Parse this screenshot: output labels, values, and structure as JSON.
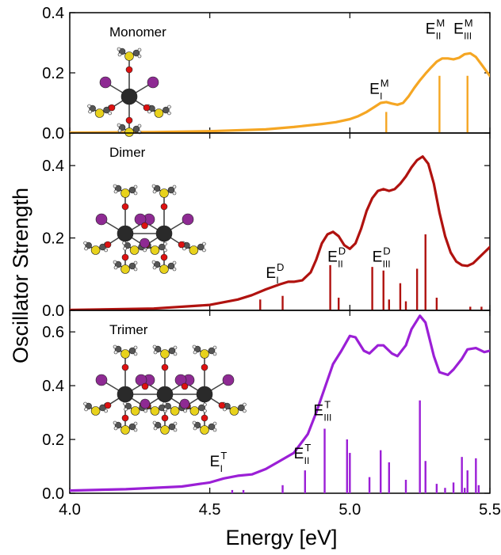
{
  "figure": {
    "ylabel": "Oscillator Strength",
    "xlabel": "Energy [eV]",
    "xlim": [
      4.0,
      5.5
    ],
    "xticks": [
      "4.0",
      "4.5",
      "5.0",
      "5.5"
    ],
    "xtick_values": [
      4.0,
      4.5,
      5.0,
      5.5
    ]
  },
  "colors": {
    "monomer": "#f5a623",
    "dimer": "#b0120f",
    "trimer": "#9b1fd6"
  },
  "chart_data": [
    {
      "type": "line",
      "name": "monomer",
      "title": "Monomer",
      "ylim": [
        0,
        0.4
      ],
      "yticks": [
        "0.0",
        "0.2",
        "0.4"
      ],
      "ytick_values": [
        0.0,
        0.2,
        0.4
      ],
      "molecule_icon": "monomer-molecule-icon",
      "curve_x": [
        4.0,
        4.3,
        4.5,
        4.7,
        4.8,
        4.9,
        4.95,
        5.0,
        5.03,
        5.06,
        5.09,
        5.11,
        5.13,
        5.15,
        5.17,
        5.19,
        5.21,
        5.23,
        5.25,
        5.27,
        5.29,
        5.31,
        5.33,
        5.35,
        5.37,
        5.39,
        5.41,
        5.43,
        5.45,
        5.47,
        5.49,
        5.5
      ],
      "curve_y": [
        0.001,
        0.003,
        0.006,
        0.012,
        0.02,
        0.03,
        0.036,
        0.046,
        0.056,
        0.07,
        0.088,
        0.1,
        0.103,
        0.098,
        0.094,
        0.1,
        0.122,
        0.15,
        0.175,
        0.197,
        0.218,
        0.237,
        0.248,
        0.248,
        0.245,
        0.25,
        0.262,
        0.265,
        0.253,
        0.228,
        0.202,
        0.19
      ],
      "sticks": [
        {
          "x": 5.13,
          "y": 0.07
        },
        {
          "x": 5.32,
          "y": 0.19
        },
        {
          "x": 5.42,
          "y": 0.19
        }
      ],
      "annotations": [
        {
          "base": "E",
          "sup": "M",
          "sub": "I",
          "x": 5.07,
          "y": 0.13
        },
        {
          "base": "E",
          "sup": "M",
          "sub": "II",
          "x": 5.27,
          "y": 0.33
        },
        {
          "base": "E",
          "sup": "M",
          "sub": "III",
          "x": 5.37,
          "y": 0.33
        }
      ]
    },
    {
      "type": "line",
      "name": "dimer",
      "title": "Dimer",
      "ylim": [
        0,
        0.49
      ],
      "yticks": [
        "0.0",
        "0.2",
        "0.4"
      ],
      "ytick_values": [
        0.0,
        0.2,
        0.4
      ],
      "molecule_icon": "dimer-molecule-icon",
      "curve_x": [
        4.0,
        4.3,
        4.5,
        4.6,
        4.65,
        4.7,
        4.75,
        4.78,
        4.8,
        4.83,
        4.86,
        4.88,
        4.9,
        4.92,
        4.94,
        4.96,
        4.98,
        5.0,
        5.02,
        5.04,
        5.06,
        5.08,
        5.1,
        5.12,
        5.14,
        5.16,
        5.18,
        5.2,
        5.22,
        5.24,
        5.26,
        5.28,
        5.3,
        5.32,
        5.34,
        5.36,
        5.38,
        5.4,
        5.42,
        5.44,
        5.46,
        5.48,
        5.5
      ],
      "curve_y": [
        0.001,
        0.005,
        0.015,
        0.03,
        0.042,
        0.058,
        0.072,
        0.079,
        0.079,
        0.083,
        0.105,
        0.14,
        0.185,
        0.21,
        0.217,
        0.205,
        0.18,
        0.17,
        0.185,
        0.225,
        0.275,
        0.31,
        0.33,
        0.335,
        0.33,
        0.335,
        0.35,
        0.37,
        0.395,
        0.415,
        0.425,
        0.405,
        0.35,
        0.27,
        0.205,
        0.16,
        0.135,
        0.125,
        0.123,
        0.13,
        0.145,
        0.16,
        0.175
      ],
      "sticks": [
        {
          "x": 4.68,
          "y": 0.03
        },
        {
          "x": 4.76,
          "y": 0.04
        },
        {
          "x": 4.93,
          "y": 0.125
        },
        {
          "x": 4.96,
          "y": 0.035
        },
        {
          "x": 5.08,
          "y": 0.12
        },
        {
          "x": 5.12,
          "y": 0.11
        },
        {
          "x": 5.14,
          "y": 0.03
        },
        {
          "x": 5.18,
          "y": 0.075
        },
        {
          "x": 5.2,
          "y": 0.025
        },
        {
          "x": 5.24,
          "y": 0.115
        },
        {
          "x": 5.27,
          "y": 0.21
        },
        {
          "x": 5.31,
          "y": 0.035
        },
        {
          "x": 5.43,
          "y": 0.01
        },
        {
          "x": 5.47,
          "y": 0.01
        }
      ],
      "annotations": [
        {
          "base": "E",
          "sup": "D",
          "sub": "I",
          "x": 4.7,
          "y": 0.09
        },
        {
          "base": "E",
          "sup": "D",
          "sub": "II",
          "x": 4.92,
          "y": 0.135
        },
        {
          "base": "E",
          "sup": "D",
          "sub": "III",
          "x": 5.08,
          "y": 0.135
        }
      ]
    },
    {
      "type": "line",
      "name": "trimer",
      "title": "Trimer",
      "ylim": [
        0,
        0.68
      ],
      "yticks": [
        "0.0",
        "0.2",
        "0.4",
        "0.6"
      ],
      "ytick_values": [
        0.0,
        0.2,
        0.4,
        0.6
      ],
      "molecule_icon": "trimer-molecule-icon",
      "curve_x": [
        4.0,
        4.2,
        4.4,
        4.5,
        4.55,
        4.6,
        4.65,
        4.7,
        4.75,
        4.8,
        4.85,
        4.88,
        4.91,
        4.94,
        4.97,
        5.0,
        5.02,
        5.05,
        5.07,
        5.1,
        5.12,
        5.15,
        5.17,
        5.2,
        5.22,
        5.25,
        5.27,
        5.3,
        5.32,
        5.35,
        5.37,
        5.4,
        5.42,
        5.45,
        5.48,
        5.5
      ],
      "curve_y": [
        0.01,
        0.015,
        0.025,
        0.04,
        0.055,
        0.065,
        0.07,
        0.09,
        0.12,
        0.15,
        0.22,
        0.3,
        0.39,
        0.48,
        0.53,
        0.585,
        0.58,
        0.53,
        0.52,
        0.55,
        0.55,
        0.52,
        0.51,
        0.55,
        0.61,
        0.66,
        0.635,
        0.51,
        0.45,
        0.44,
        0.46,
        0.5,
        0.535,
        0.54,
        0.525,
        0.53
      ],
      "sticks": [
        {
          "x": 4.58,
          "y": 0.012
        },
        {
          "x": 4.62,
          "y": 0.012
        },
        {
          "x": 4.76,
          "y": 0.03
        },
        {
          "x": 4.84,
          "y": 0.085
        },
        {
          "x": 4.91,
          "y": 0.24
        },
        {
          "x": 4.99,
          "y": 0.2
        },
        {
          "x": 5.0,
          "y": 0.15
        },
        {
          "x": 5.07,
          "y": 0.06
        },
        {
          "x": 5.11,
          "y": 0.16
        },
        {
          "x": 5.14,
          "y": 0.115
        },
        {
          "x": 5.2,
          "y": 0.05
        },
        {
          "x": 5.25,
          "y": 0.345
        },
        {
          "x": 5.27,
          "y": 0.12
        },
        {
          "x": 5.31,
          "y": 0.035
        },
        {
          "x": 5.34,
          "y": 0.02
        },
        {
          "x": 5.37,
          "y": 0.04
        },
        {
          "x": 5.4,
          "y": 0.135
        },
        {
          "x": 5.41,
          "y": 0.02
        },
        {
          "x": 5.42,
          "y": 0.085
        },
        {
          "x": 5.45,
          "y": 0.13
        },
        {
          "x": 5.46,
          "y": 0.03
        }
      ],
      "annotations": [
        {
          "base": "E",
          "sup": "T",
          "sub": "I",
          "x": 4.5,
          "y": 0.1
        },
        {
          "base": "E",
          "sup": "T",
          "sub": "II",
          "x": 4.8,
          "y": 0.13
        },
        {
          "base": "E",
          "sup": "T",
          "sub": "III",
          "x": 4.87,
          "y": 0.29
        }
      ]
    }
  ]
}
